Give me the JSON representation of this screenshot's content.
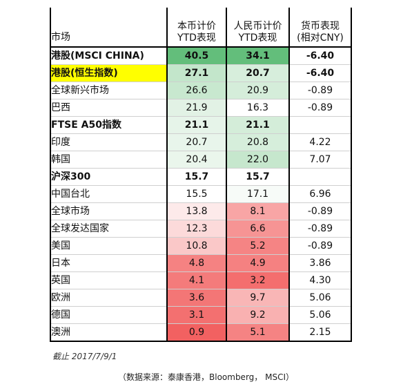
{
  "header": {
    "market": "市场",
    "local_line1": "本币计价",
    "local_line2": "YTD表现",
    "cny_line1": "人民币计价",
    "cny_line2": "YTD表现",
    "fx_line1": "货币表现",
    "fx_line2": "(相对CNY)"
  },
  "rows": [
    {
      "market": "港股(MSCI CHINA)",
      "local": "40.5",
      "cny": "34.1",
      "fx": "-6.40",
      "bold": true,
      "highlight": false,
      "bg_local": "#63be7b",
      "bg_cny": "#63be7b"
    },
    {
      "market": "港股(恒生指数)",
      "local": "27.1",
      "cny": "20.7",
      "fx": "-6.40",
      "bold": true,
      "highlight": true,
      "bg_local": "#c3e6cb",
      "bg_cny": "#d7eedc"
    },
    {
      "market": "全球新兴市场",
      "local": "26.6",
      "cny": "20.9",
      "fx": "-0.89",
      "bold": false,
      "highlight": false,
      "bg_local": "#c8e8cf",
      "bg_cny": "#d5edda"
    },
    {
      "market": "巴西",
      "local": "21.9",
      "cny": "16.3",
      "fx": "-0.89",
      "bold": false,
      "highlight": false,
      "bg_local": "#e2f2e5",
      "bg_cny": "#ffffff"
    },
    {
      "market": "FTSE A50指数",
      "local": "21.1",
      "cny": "21.1",
      "fx": "",
      "bold": true,
      "highlight": false,
      "bg_local": "#e6f4e9",
      "bg_cny": "#d4edd9"
    },
    {
      "market": "印度",
      "local": "20.7",
      "cny": "20.8",
      "fx": "4.22",
      "bold": false,
      "highlight": false,
      "bg_local": "#e8f5eb",
      "bg_cny": "#d6eedb"
    },
    {
      "market": "韩国",
      "local": "20.4",
      "cny": "22.0",
      "fx": "7.07",
      "bold": false,
      "highlight": false,
      "bg_local": "#eaf6ec",
      "bg_cny": "#c6e7cd"
    },
    {
      "market": "沪深300",
      "local": "15.7",
      "cny": "15.7",
      "fx": "",
      "bold": true,
      "highlight": false,
      "bg_local": "#ffffff",
      "bg_cny": "#ffffff"
    },
    {
      "market": "中国台北",
      "local": "15.5",
      "cny": "17.1",
      "fx": "6.96",
      "bold": false,
      "highlight": false,
      "bg_local": "#ffffff",
      "bg_cny": "#f7fbf8"
    },
    {
      "market": "全球市场",
      "local": "13.8",
      "cny": "8.1",
      "fx": "-0.89",
      "bold": false,
      "highlight": false,
      "bg_local": "#fdeaea",
      "bg_cny": "#f8a5a5"
    },
    {
      "market": "全球发达国家",
      "local": "12.3",
      "cny": "6.6",
      "fx": "-0.89",
      "bold": false,
      "highlight": false,
      "bg_local": "#fcdada",
      "bg_cny": "#f69494"
    },
    {
      "market": "美国",
      "local": "10.8",
      "cny": "5.2",
      "fx": "-0.89",
      "bold": false,
      "highlight": false,
      "bg_local": "#fac8c8",
      "bg_cny": "#f58484"
    },
    {
      "market": "日本",
      "local": "4.8",
      "cny": "4.9",
      "fx": "3.86",
      "bold": false,
      "highlight": false,
      "bg_local": "#f58282",
      "bg_cny": "#f58181"
    },
    {
      "market": "英国",
      "local": "4.1",
      "cny": "3.2",
      "fx": "4.30",
      "bold": false,
      "highlight": false,
      "bg_local": "#f47b7b",
      "bg_cny": "#f46e6e"
    },
    {
      "market": "欧洲",
      "local": "3.6",
      "cny": "9.7",
      "fx": "5.06",
      "bold": false,
      "highlight": false,
      "bg_local": "#f37676",
      "bg_cny": "#f9b6b6"
    },
    {
      "market": "德国",
      "local": "3.1",
      "cny": "9.2",
      "fx": "5.06",
      "bold": false,
      "highlight": false,
      "bg_local": "#f37070",
      "bg_cny": "#f9b1b1"
    },
    {
      "market": "澳洲",
      "local": "0.9",
      "cny": "5.1",
      "fx": "2.15",
      "bold": false,
      "highlight": false,
      "bg_local": "#f26161",
      "bg_cny": "#f58383"
    }
  ],
  "note": "截止 2017/7/9/1",
  "source": "（数据来源：泰康香港，Bloomberg， MSCI）"
}
